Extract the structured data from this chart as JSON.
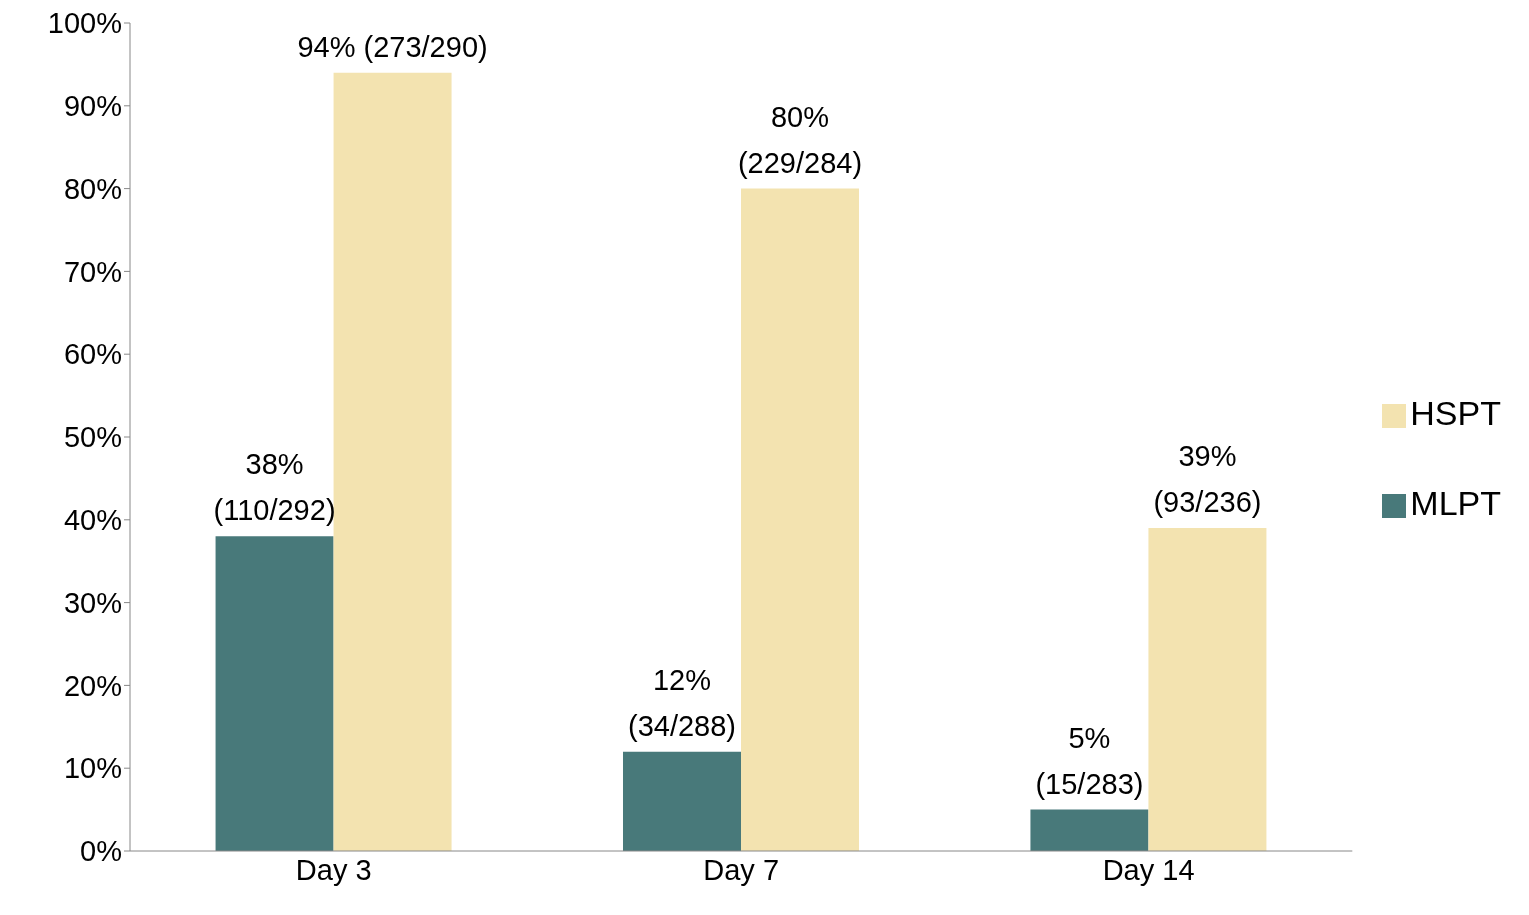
{
  "chart_data": {
    "type": "bar",
    "categories": [
      "Day 3",
      "Day 7",
      "Day 14"
    ],
    "series": [
      {
        "name": "MLPT",
        "color": "#48797a",
        "values": [
          38,
          12,
          5
        ],
        "value_labels": [
          "38%\n(110/292)",
          "12%\n(34/288)",
          "5%\n(15/283)"
        ]
      },
      {
        "name": "HSPT",
        "color": "#f3e3b0",
        "values": [
          94,
          80,
          39
        ],
        "value_labels": [
          "94% (273/290)",
          "80%\n(229/284)",
          "39%\n(93/236)"
        ]
      }
    ],
    "ylim": [
      0,
      100
    ],
    "yticks": [
      {
        "value": 0,
        "label": "0%"
      },
      {
        "value": 10,
        "label": "10%"
      },
      {
        "value": 20,
        "label": "20%"
      },
      {
        "value": 30,
        "label": "30%"
      },
      {
        "value": 40,
        "label": "40%"
      },
      {
        "value": 50,
        "label": "50%"
      },
      {
        "value": 60,
        "label": "60%"
      },
      {
        "value": 70,
        "label": "70%"
      },
      {
        "value": 80,
        "label": "80%"
      },
      {
        "value": 90,
        "label": "90%"
      },
      {
        "value": 100,
        "label": "100%"
      }
    ],
    "grid": false,
    "legend": "right"
  }
}
